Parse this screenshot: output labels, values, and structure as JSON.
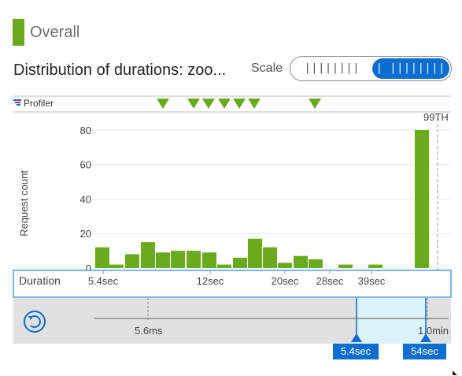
{
  "legend": {
    "label": "Overall",
    "color": "#6aaa1e"
  },
  "header": {
    "title": "Distribution of durations: zoo...",
    "scale_label": "Scale"
  },
  "scale_toggle": {
    "linear_label": "||||||||",
    "log_label": "| ||||||||",
    "selected": "log"
  },
  "profiler": {
    "label": "Profiler",
    "marker_count": 7
  },
  "percentile_label": "99TH",
  "chart_data": {
    "type": "bar",
    "ylabel": "Request count",
    "xlabel": "Duration",
    "x_scale": "log",
    "ylim": [
      0,
      85
    ],
    "yticks": [
      0,
      20,
      40,
      60,
      80
    ],
    "xtick_labels": [
      "5.4sec",
      "12sec",
      "20sec",
      "28sec",
      "39sec"
    ],
    "values": [
      12,
      2,
      8,
      15,
      9,
      10,
      10,
      9,
      2,
      6,
      17,
      12,
      3,
      7,
      5,
      0,
      2,
      0,
      2,
      0,
      0,
      80
    ],
    "bar_color": "#6aaa1e"
  },
  "slider": {
    "min_label": "5.6ms",
    "max_label": "1.0min",
    "handle_left_label": "5.4sec",
    "handle_right_label": "54sec"
  }
}
